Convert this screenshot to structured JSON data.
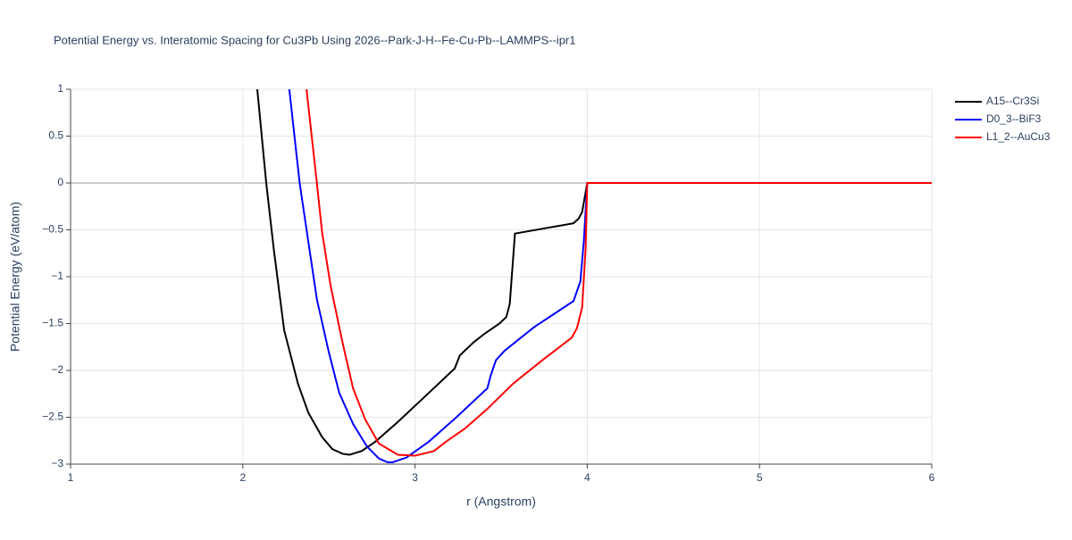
{
  "chart_data": {
    "type": "line",
    "title": "Potential Energy vs. Interatomic Spacing for Cu3Pb Using 2026--Park-J-H--Fe-Cu-Pb--LAMMPS--ipr1",
    "x_label": "r (Angstrom)",
    "y_label": "Potential Energy (eV/atom)",
    "xlim": [
      1,
      6
    ],
    "ylim": [
      -3,
      1
    ],
    "xticks": [
      1,
      2,
      3,
      4,
      5,
      6
    ],
    "yticks": [
      {
        "value": -3,
        "label": "−3"
      },
      {
        "value": -2.5,
        "label": "−2.5"
      },
      {
        "value": -2,
        "label": "−2"
      },
      {
        "value": -1.5,
        "label": "−1.5"
      },
      {
        "value": -1,
        "label": "−1"
      },
      {
        "value": -0.5,
        "label": "−0.5"
      },
      0,
      0.5,
      1
    ],
    "grid": true,
    "legend": "outside-right",
    "series": [
      {
        "name": "A15--Cr3Si",
        "color": "#000000",
        "x": [
          2.084,
          2.136,
          2.18,
          2.24,
          2.32,
          2.38,
          2.46,
          2.52,
          2.58,
          2.62,
          2.69,
          2.77,
          2.9,
          3.08,
          3.23,
          3.26,
          3.34,
          3.41,
          3.49,
          3.53,
          3.55,
          3.58,
          3.92,
          3.95,
          3.97,
          4.0,
          6.0
        ],
        "values": [
          1,
          0,
          -0.71,
          -1.57,
          -2.14,
          -2.45,
          -2.71,
          -2.84,
          -2.89,
          -2.9,
          -2.86,
          -2.76,
          -2.55,
          -2.24,
          -1.98,
          -1.84,
          -1.7,
          -1.6,
          -1.5,
          -1.43,
          -1.29,
          -0.54,
          -0.43,
          -0.38,
          -0.31,
          0,
          0
        ]
      },
      {
        "name": "D0_3--BiF3",
        "color": "#0000ff",
        "x": [
          2.27,
          2.33,
          2.38,
          2.43,
          2.5,
          2.56,
          2.64,
          2.72,
          2.79,
          2.84,
          2.87,
          2.95,
          3.08,
          3.24,
          3.42,
          3.44,
          3.47,
          3.52,
          3.69,
          3.92,
          3.96,
          3.98,
          4.0,
          6.0
        ],
        "values": [
          1,
          0,
          -0.62,
          -1.24,
          -1.81,
          -2.24,
          -2.57,
          -2.81,
          -2.94,
          -2.98,
          -2.98,
          -2.93,
          -2.76,
          -2.5,
          -2.19,
          -2.05,
          -1.89,
          -1.79,
          -1.54,
          -1.26,
          -1.05,
          -0.62,
          0,
          0
        ]
      },
      {
        "name": "L1_2--AuCu3",
        "color": "#ff0000",
        "x": [
          2.37,
          2.43,
          2.46,
          2.51,
          2.58,
          2.64,
          2.71,
          2.79,
          2.9,
          3.0,
          3.11,
          3.18,
          3.29,
          3.42,
          3.57,
          3.74,
          3.91,
          3.94,
          3.97,
          3.99,
          4.0,
          6.0
        ],
        "values": [
          1,
          0,
          -0.52,
          -1.1,
          -1.71,
          -2.19,
          -2.52,
          -2.78,
          -2.9,
          -2.91,
          -2.86,
          -2.76,
          -2.62,
          -2.41,
          -2.14,
          -1.89,
          -1.65,
          -1.55,
          -1.33,
          -0.71,
          0,
          0
        ]
      }
    ]
  }
}
